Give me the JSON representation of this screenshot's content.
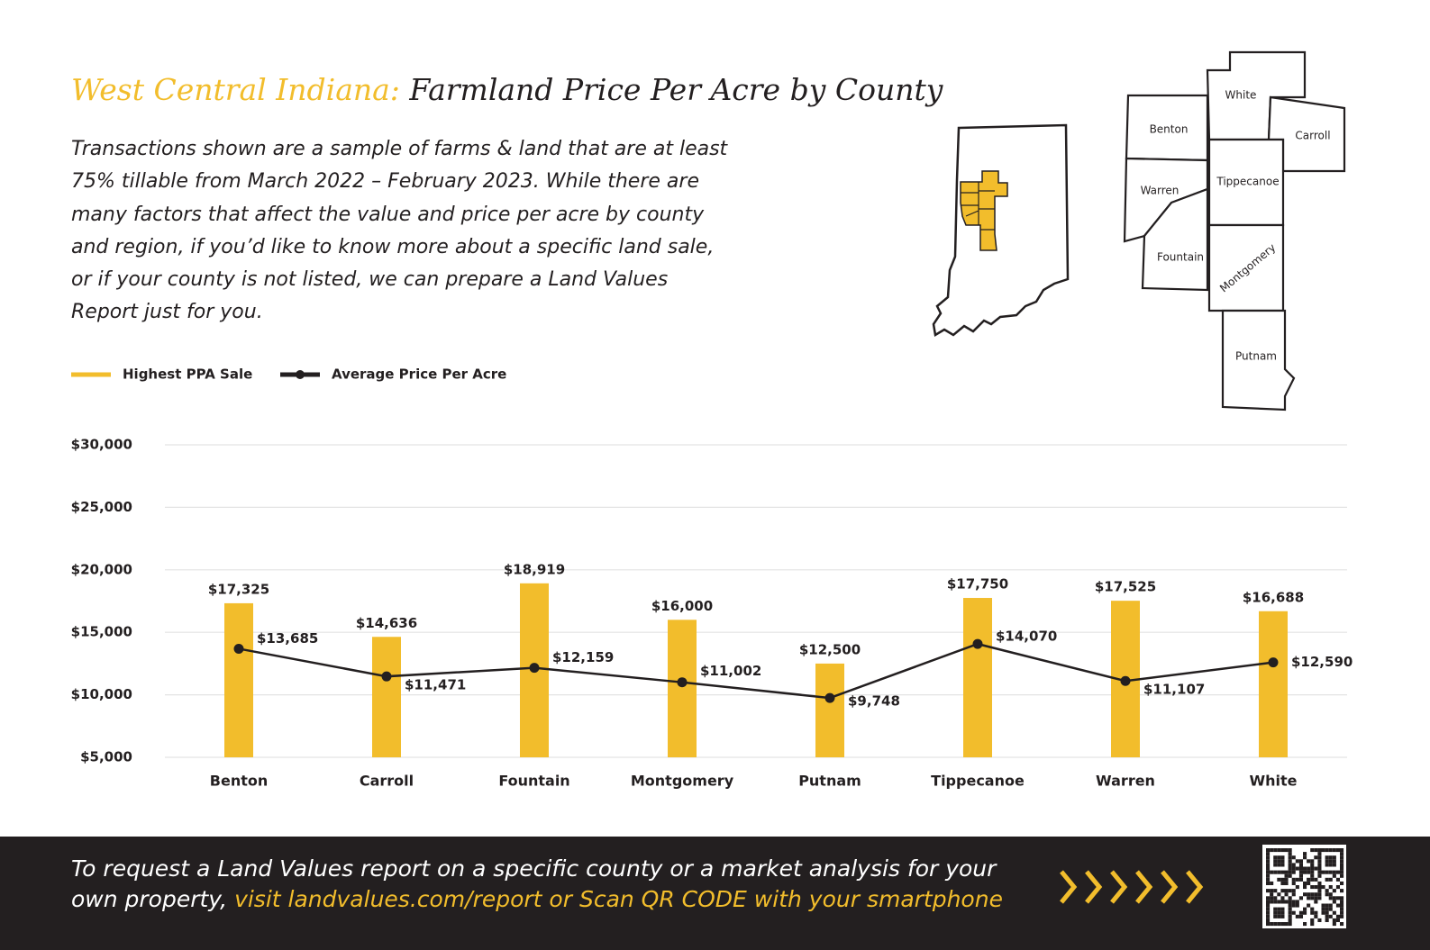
{
  "chart_data": {
    "type": "bar",
    "title_lead": "West Central Indiana:",
    "title": "Farmland Price Per Acre by County",
    "description": "Transactions shown are a sample of farms & land that are at least 75% tillable from March 2022 – February 2023. While there are many factors that affect the value and price per acre by county and region, if you’d like to know more about a specific land sale, or if your county is not listed, we can prepare a Land Values Report just for you.",
    "categories": [
      "Benton",
      "Carroll",
      "Fountain",
      "Montgomery",
      "Putnam",
      "Tippecanoe",
      "Warren",
      "White"
    ],
    "series": [
      {
        "name": "Highest PPA Sale",
        "type": "bar",
        "color": "#f2bd2c",
        "values": [
          17325,
          14636,
          18919,
          16000,
          12500,
          17750,
          17525,
          16688
        ],
        "value_labels": [
          "$17,325",
          "$14,636",
          "$18,919",
          "$16,000",
          "$12,500",
          "$17,750",
          "$17,525",
          "$16,688"
        ]
      },
      {
        "name": "Average Price Per Acre",
        "type": "line",
        "color": "#231f20",
        "values": [
          13685,
          11471,
          12159,
          11002,
          9748,
          14070,
          11107,
          12590
        ],
        "value_labels": [
          "$13,685",
          "$11,471",
          "$12,159",
          "$11,002",
          "$9,748",
          "$14,070",
          "$11,107",
          "$12,590"
        ]
      }
    ],
    "ylim": [
      5000,
      30000
    ],
    "yticks": [
      {
        "value": 5000,
        "label": "$5,000"
      },
      {
        "value": 10000,
        "label": "$10,000"
      },
      {
        "value": 15000,
        "label": "$15,000"
      },
      {
        "value": 20000,
        "label": "$20,000"
      },
      {
        "value": 25000,
        "label": "$25,000"
      },
      {
        "value": 30000,
        "label": "$30,000"
      }
    ],
    "grid": true,
    "legend": "top-left"
  },
  "map": {
    "counties": [
      "White",
      "Benton",
      "Carroll",
      "Warren",
      "Tippecanoe",
      "Fountain",
      "Montgomery",
      "Putnam"
    ]
  },
  "footer": {
    "text": "To request a Land Values report on a specific county or a market analysis for your own property,",
    "link": "visit landvalues.com/report or Scan QR CODE with your smartphone"
  }
}
